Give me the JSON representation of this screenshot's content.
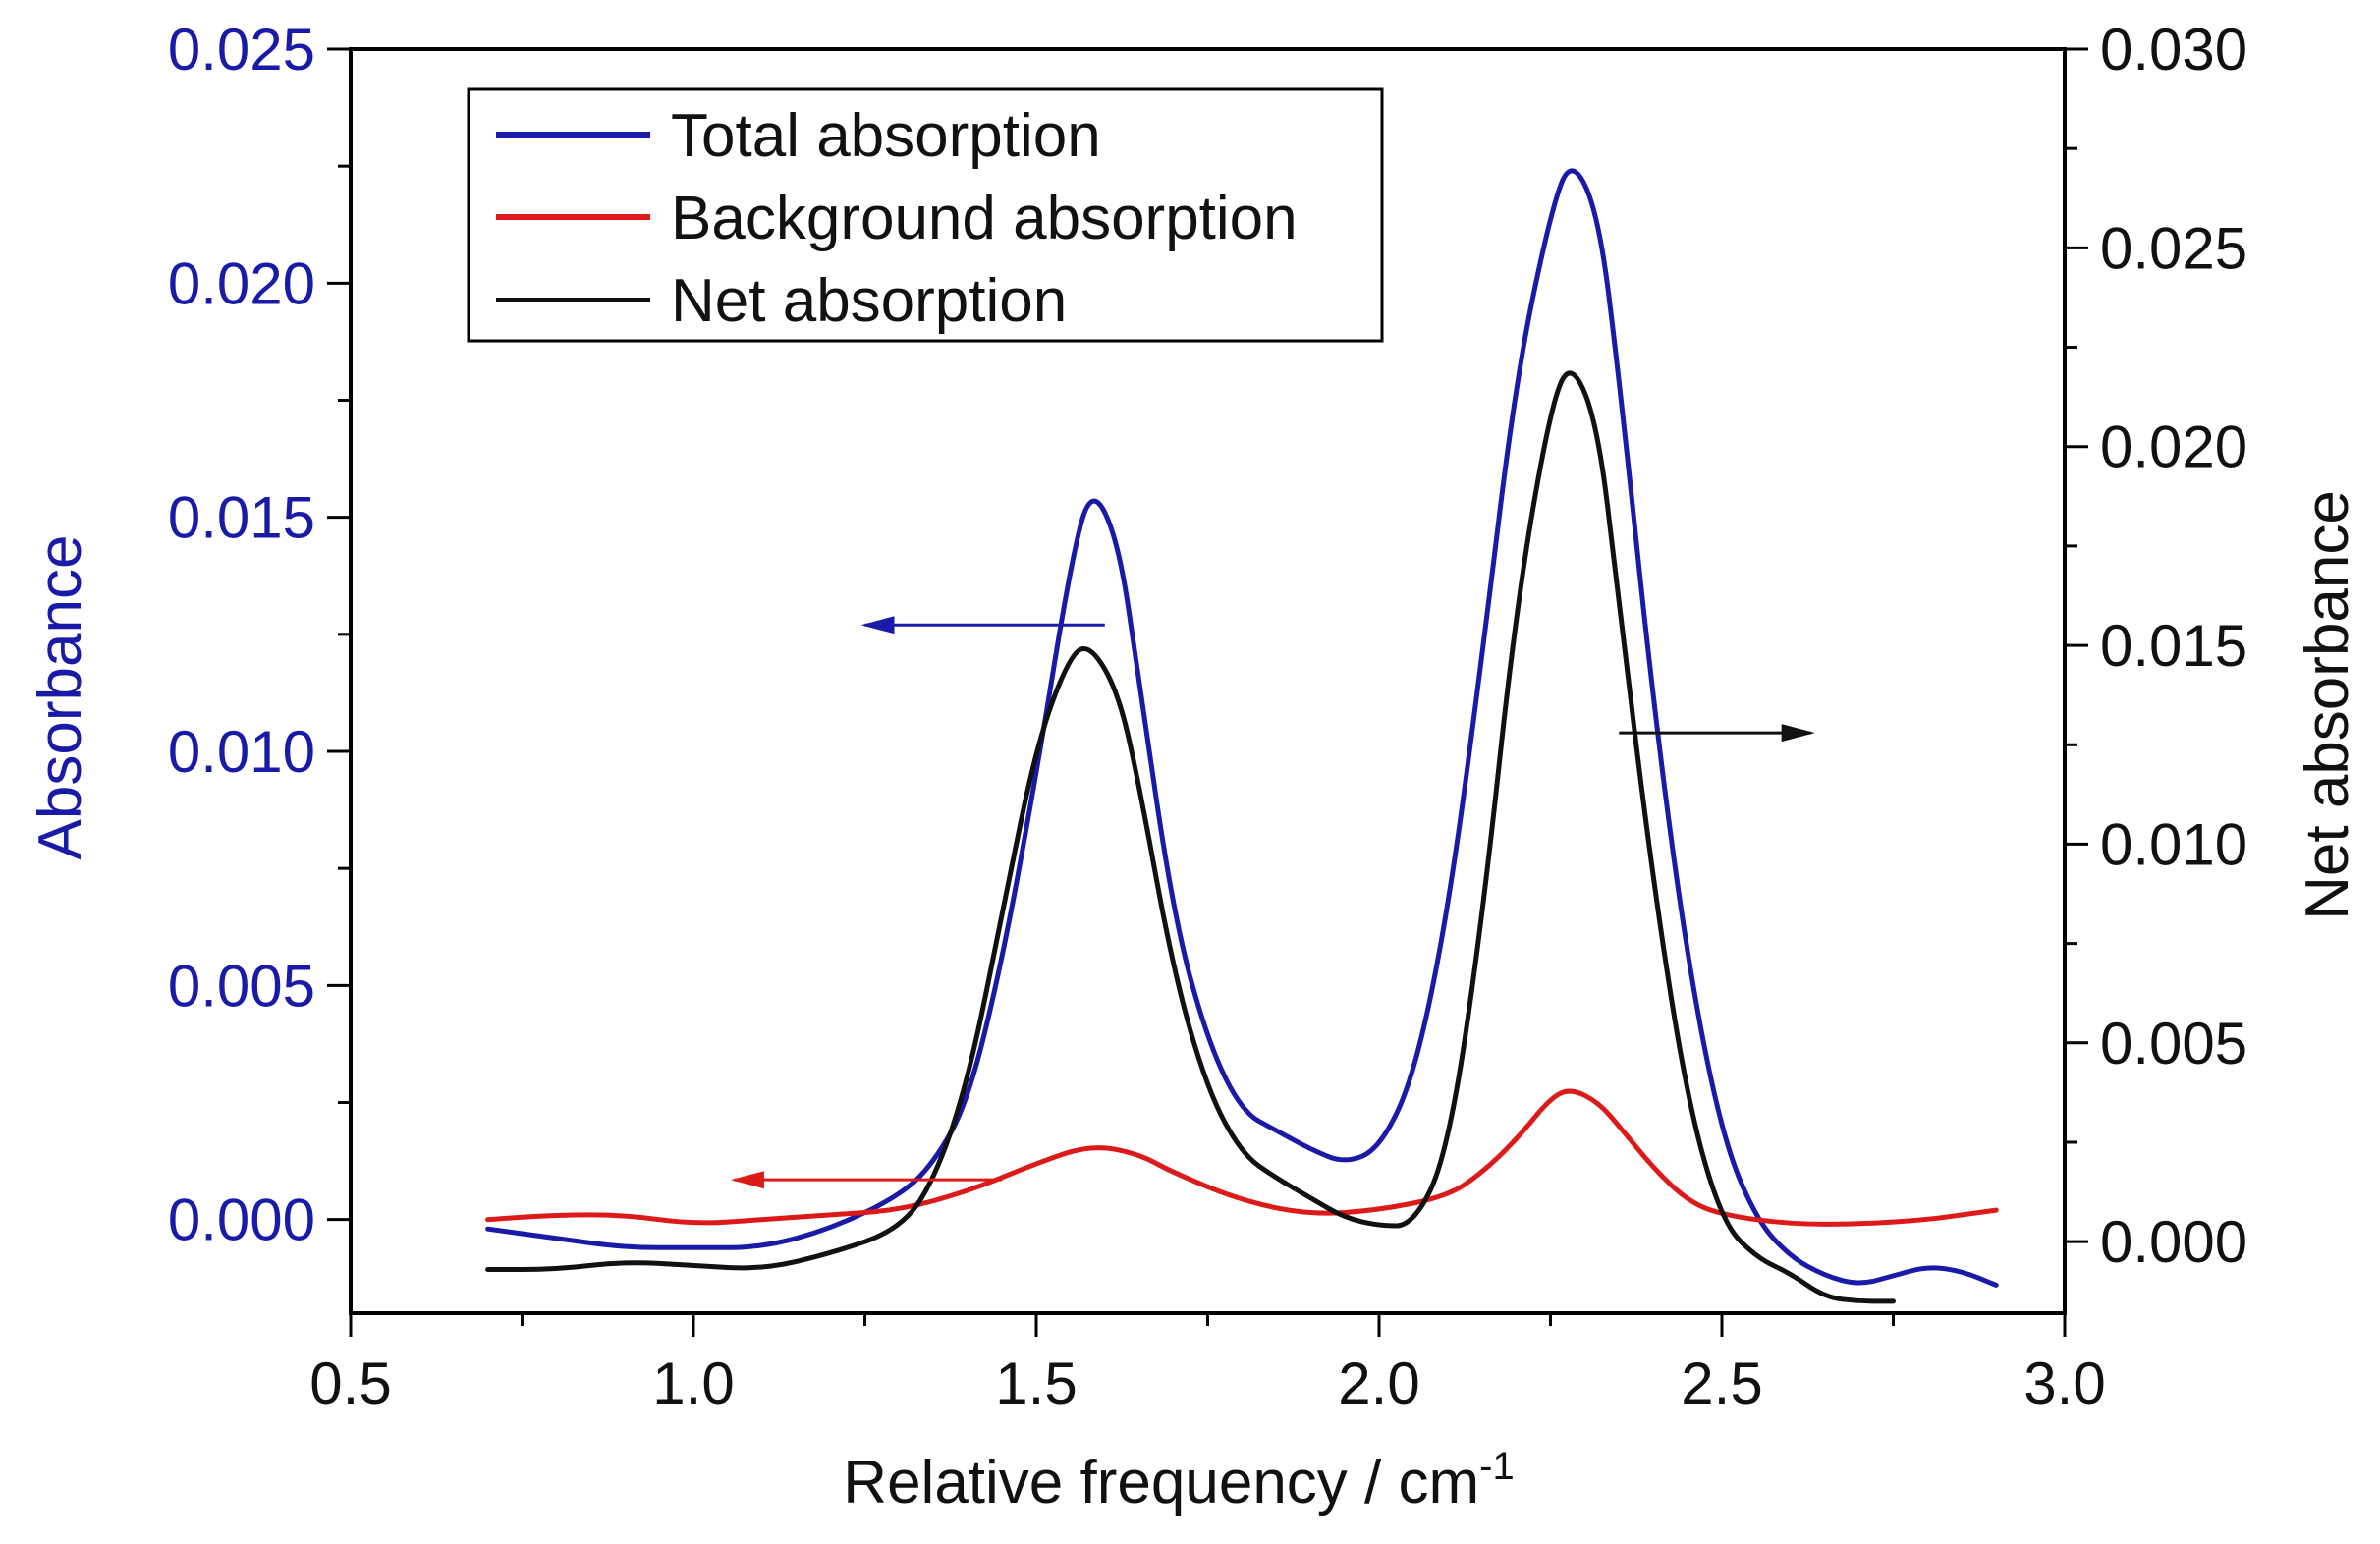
{
  "chart_data": {
    "type": "line",
    "title": "",
    "xlabel": "Relative frequency / cm",
    "xlabel_superscript": "-1",
    "ylabel_left": "Absorbance",
    "ylabel_right": "Net absorbance",
    "xlim": [
      0.5,
      3.0
    ],
    "ylim_left": [
      -0.002,
      0.025
    ],
    "ylim_right": [
      -0.0018,
      0.03
    ],
    "x_ticks": [
      "0.5",
      "1.0",
      "1.5",
      "2.0",
      "2.5",
      "3.0"
    ],
    "y_left_ticks": [
      "0.000",
      "0.005",
      "0.010",
      "0.015",
      "0.020",
      "0.025"
    ],
    "y_right_ticks": [
      "0.000",
      "0.005",
      "0.010",
      "0.015",
      "0.020",
      "0.025",
      "0.030"
    ],
    "legend_position": "top-left",
    "series": [
      {
        "name": "Total absorption",
        "axis": "left",
        "color": "#1a1aa8",
        "x": [
          0.7,
          0.8,
          0.9,
          1.0,
          1.1,
          1.2,
          1.3,
          1.35,
          1.4,
          1.45,
          1.5,
          1.55,
          1.58,
          1.62,
          1.65,
          1.7,
          1.75,
          1.8,
          1.85,
          1.9,
          1.95,
          2.0,
          2.05,
          2.1,
          2.15,
          2.2,
          2.25,
          2.28,
          2.32,
          2.35,
          2.4,
          2.45,
          2.5,
          2.55,
          2.6,
          2.65,
          2.7,
          2.75,
          2.8,
          2.85,
          2.9
        ],
        "y": [
          -0.0002,
          -0.0004,
          -0.0006,
          -0.0006,
          -0.0006,
          -0.0002,
          0.0005,
          0.0012,
          0.0025,
          0.0055,
          0.0095,
          0.014,
          0.0157,
          0.0145,
          0.0115,
          0.0065,
          0.0038,
          0.0023,
          0.0019,
          0.0015,
          0.0012,
          0.0015,
          0.003,
          0.0065,
          0.012,
          0.018,
          0.0215,
          0.0227,
          0.0215,
          0.018,
          0.011,
          0.0055,
          0.0018,
          0.0,
          -0.0008,
          -0.0012,
          -0.0014,
          -0.0012,
          -0.001,
          -0.0011,
          -0.0014
        ]
      },
      {
        "name": "Background absorption",
        "axis": "left",
        "color": "#dd1a1a",
        "x": [
          0.7,
          0.8,
          0.9,
          1.0,
          1.1,
          1.2,
          1.3,
          1.4,
          1.5,
          1.58,
          1.65,
          1.7,
          1.8,
          1.9,
          2.0,
          2.1,
          2.15,
          2.2,
          2.25,
          2.28,
          2.32,
          2.35,
          2.4,
          2.45,
          2.5,
          2.6,
          2.7,
          2.8,
          2.85,
          2.9
        ],
        "y": [
          0.0,
          0.0001,
          0.0001,
          -0.0001,
          0.0,
          0.0001,
          0.0002,
          0.0006,
          0.0012,
          0.0016,
          0.0014,
          0.001,
          0.0004,
          0.0001,
          0.0002,
          0.0005,
          0.001,
          0.0017,
          0.0026,
          0.0028,
          0.0025,
          0.002,
          0.0011,
          0.0004,
          0.0001,
          -0.0001,
          -0.0001,
          0.0,
          0.0001,
          0.0002
        ]
      },
      {
        "name": "Net absorption",
        "axis": "right",
        "color": "#111111",
        "x": [
          0.7,
          0.8,
          0.9,
          1.0,
          1.1,
          1.2,
          1.3,
          1.35,
          1.4,
          1.45,
          1.5,
          1.55,
          1.58,
          1.62,
          1.65,
          1.7,
          1.75,
          1.8,
          1.85,
          1.9,
          1.95,
          2.0,
          2.05,
          2.1,
          2.15,
          2.2,
          2.25,
          2.28,
          2.32,
          2.35,
          2.4,
          2.45,
          2.5,
          2.55,
          2.6,
          2.65,
          2.7,
          2.75
        ],
        "y": [
          -0.0007,
          -0.0007,
          -0.0005,
          -0.0006,
          -0.0007,
          -0.0003,
          0.0003,
          0.0015,
          0.004,
          0.0082,
          0.0125,
          0.0148,
          0.015,
          0.0138,
          0.0115,
          0.0068,
          0.0038,
          0.0022,
          0.0016,
          0.0011,
          0.0006,
          0.0004,
          0.0004,
          0.0022,
          0.008,
          0.016,
          0.021,
          0.0222,
          0.0205,
          0.016,
          0.009,
          0.0035,
          0.0005,
          -0.0004,
          -0.0008,
          -0.0014,
          -0.0015,
          -0.0015
        ]
      }
    ],
    "annotations": [
      {
        "type": "arrow",
        "color": "#1a1aa8",
        "direction": "left",
        "from_x": 1.6,
        "to_x": 1.25,
        "y": 0.0127,
        "axis": "left"
      },
      {
        "type": "arrow",
        "color": "#dd1a1a",
        "direction": "left",
        "from_x": 1.45,
        "to_x": 1.06,
        "y": 0.00085,
        "axis": "left"
      },
      {
        "type": "arrow",
        "color": "#111111",
        "direction": "right",
        "from_x": 2.35,
        "to_x": 2.63,
        "y": 0.0128,
        "axis": "right"
      }
    ]
  }
}
